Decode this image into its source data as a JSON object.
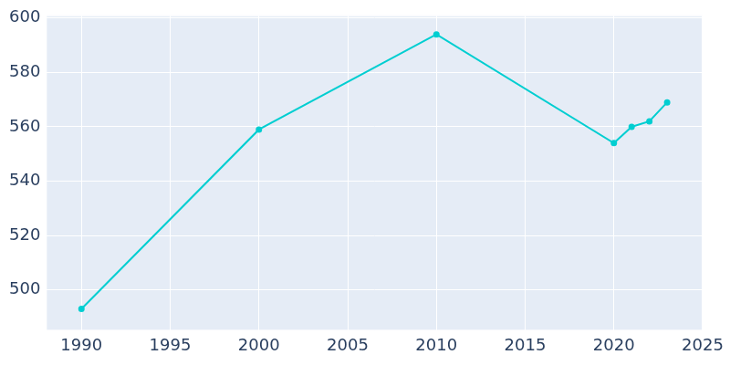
{
  "chart_data": {
    "type": "line",
    "x": [
      1990,
      2000,
      2010,
      2020,
      2021,
      2022,
      2023
    ],
    "values": [
      493,
      559,
      594,
      554,
      560,
      562,
      569
    ],
    "color": "#00ced1",
    "marker": "circle",
    "xlim": [
      1988,
      2025
    ],
    "xticks": [
      1990,
      1995,
      2000,
      2005,
      2010,
      2015,
      2020,
      2025
    ],
    "ylim": [
      485,
      601
    ],
    "yticks": [
      500,
      520,
      540,
      560,
      580,
      600
    ],
    "grid": true
  }
}
